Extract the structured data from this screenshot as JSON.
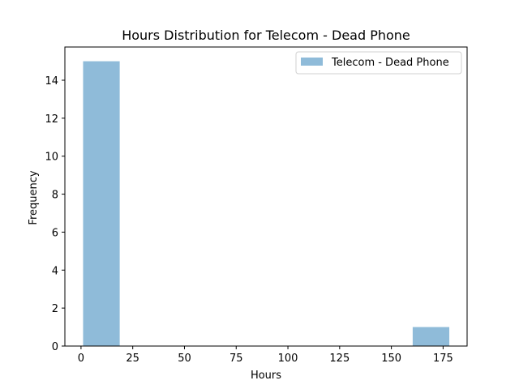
{
  "chart_data": {
    "type": "bar",
    "title": "Hours Distribution for Telecom - Dead Phone",
    "xlabel": "Hours",
    "ylabel": "Frequency",
    "xlim": [
      -7.8,
      186.6
    ],
    "ylim": [
      0,
      15.75
    ],
    "xticks": [
      0,
      25,
      50,
      75,
      100,
      125,
      150,
      175
    ],
    "yticks": [
      0,
      2,
      4,
      6,
      8,
      10,
      12,
      14
    ],
    "grid": false,
    "legend_position": "top-right",
    "series": [
      {
        "name": "Telecom - Dead Phone",
        "color": "#8fbbd9",
        "bins": [
          {
            "start": 1.0,
            "end": 18.7,
            "count": 15
          },
          {
            "start": 18.7,
            "end": 36.4,
            "count": 0
          },
          {
            "start": 36.4,
            "end": 54.1,
            "count": 0
          },
          {
            "start": 54.1,
            "end": 71.8,
            "count": 0
          },
          {
            "start": 71.8,
            "end": 89.5,
            "count": 0
          },
          {
            "start": 89.5,
            "end": 107.2,
            "count": 0
          },
          {
            "start": 107.2,
            "end": 124.9,
            "count": 0
          },
          {
            "start": 124.9,
            "end": 142.6,
            "count": 0
          },
          {
            "start": 142.6,
            "end": 160.3,
            "count": 0
          },
          {
            "start": 160.3,
            "end": 178.0,
            "count": 1
          }
        ]
      }
    ]
  }
}
